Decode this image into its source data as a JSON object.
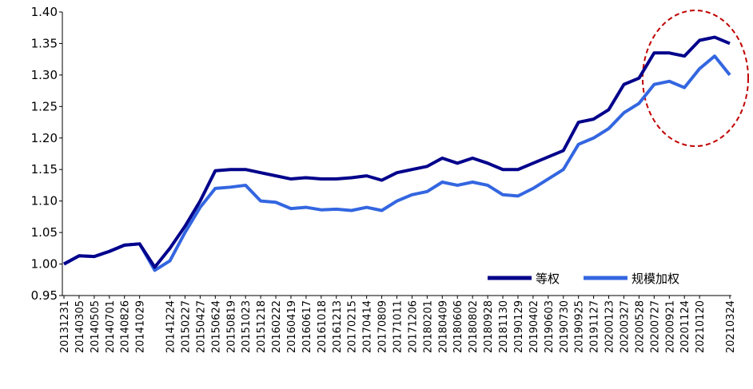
{
  "chart_data": {
    "type": "line",
    "categories": [
      "20131231",
      "20140305",
      "20140505",
      "20140701",
      "20140826",
      "20141029",
      null,
      "20141224",
      "20150227",
      "20150427",
      "20150624",
      "20150819",
      "20151023",
      "20151218",
      "20160222",
      "20160419",
      "20160617",
      "20161018",
      "20161213",
      "20170215",
      "20170414",
      "20170809",
      "20171011",
      "20171206",
      "20180201",
      "20180409",
      "20180606",
      "20180802",
      "20180928",
      "20181130",
      "20190129",
      "20190402",
      "20190603",
      "20190730",
      "20190925",
      "20191127",
      "20200123",
      "20200327",
      "20200528",
      "20200727",
      "20200921",
      "20201124",
      "20210120",
      null,
      "20210324"
    ],
    "series": [
      {
        "name": "等权",
        "color": "#00008b",
        "values": [
          1.0,
          1.013,
          1.012,
          1.02,
          1.03,
          1.032,
          0.995,
          1.025,
          1.06,
          1.1,
          1.148,
          1.15,
          1.15,
          1.145,
          1.14,
          1.135,
          1.137,
          1.135,
          1.135,
          1.137,
          1.14,
          1.133,
          1.145,
          1.15,
          1.155,
          1.168,
          1.16,
          1.168,
          1.16,
          1.15,
          1.15,
          1.16,
          1.17,
          1.18,
          1.225,
          1.23,
          1.245,
          1.285,
          1.295,
          1.335,
          1.335,
          1.33,
          1.355,
          1.36,
          1.35
        ]
      },
      {
        "name": "规模加权",
        "color": "#3366e0",
        "values": [
          1.0,
          1.013,
          1.012,
          1.02,
          1.03,
          1.032,
          0.99,
          1.005,
          1.05,
          1.09,
          1.12,
          1.122,
          1.125,
          1.1,
          1.098,
          1.088,
          1.09,
          1.086,
          1.087,
          1.085,
          1.09,
          1.085,
          1.1,
          1.11,
          1.115,
          1.13,
          1.125,
          1.13,
          1.125,
          1.11,
          1.108,
          1.12,
          1.135,
          1.15,
          1.19,
          1.2,
          1.215,
          1.24,
          1.255,
          1.285,
          1.29,
          1.28,
          1.31,
          1.33,
          1.3
        ]
      }
    ],
    "ylim": [
      0.95,
      1.4
    ],
    "yticks": [
      {
        "value": 0.95,
        "label": "0.95"
      },
      {
        "value": 1.0,
        "label": "1.00"
      },
      {
        "value": 1.05,
        "label": "1.05"
      },
      {
        "value": 1.1,
        "label": "1.10"
      },
      {
        "value": 1.15,
        "label": "1.15"
      },
      {
        "value": 1.2,
        "label": "1.20"
      },
      {
        "value": 1.25,
        "label": "1.25"
      },
      {
        "value": 1.3,
        "label": "1.30"
      },
      {
        "value": 1.35,
        "label": "1.35"
      },
      {
        "value": 1.4,
        "label": "1.40"
      }
    ],
    "legend": "lower-right"
  }
}
